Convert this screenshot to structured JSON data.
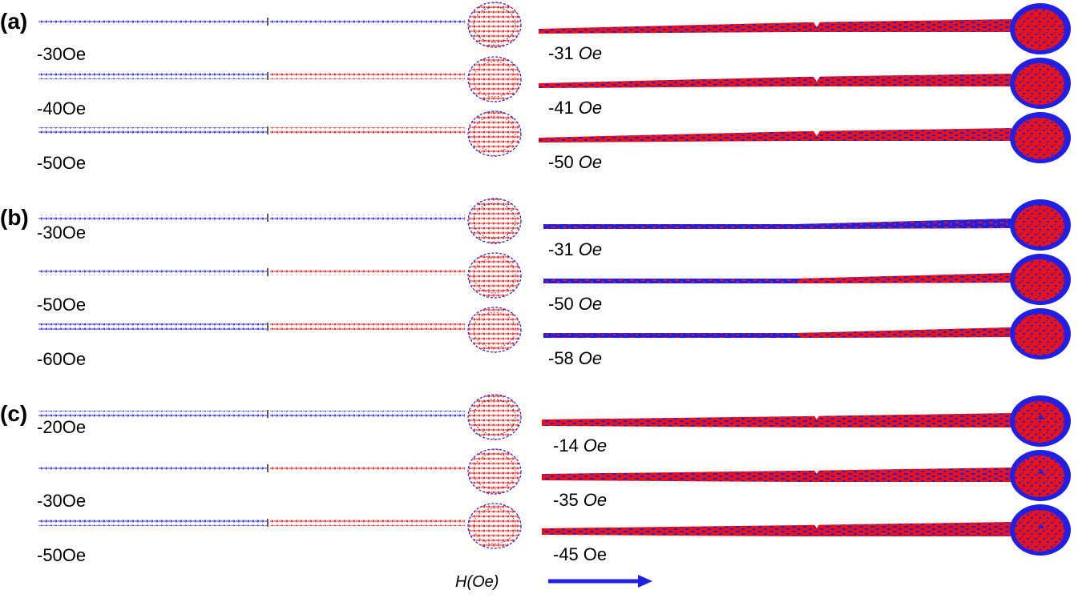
{
  "colors": {
    "blue": "#1f1fe6",
    "red": "#ee1111",
    "dark": "#222222"
  },
  "axis": {
    "label": "H(Oe)"
  },
  "panels": [
    {
      "label": "(a)",
      "left_fields": [
        "-30Oe",
        "-40Oe",
        "-50Oe"
      ],
      "right_fields": [
        {
          "value": "-31",
          "unit": "Oe",
          "unit_italic": true
        },
        {
          "value": "-41",
          "unit": "Oe",
          "unit_italic": true
        },
        {
          "value": "-50",
          "unit": "Oe",
          "unit_italic": true
        }
      ]
    },
    {
      "label": "(b)",
      "left_fields": [
        "-30Oe",
        "-50Oe",
        "-60Oe"
      ],
      "right_fields": [
        {
          "value": "-31",
          "unit": "Oe",
          "unit_italic": true
        },
        {
          "value": "-50",
          "unit": "Oe",
          "unit_italic": true
        },
        {
          "value": "-58",
          "unit": "Oe",
          "unit_italic": true
        }
      ]
    },
    {
      "label": "(c)",
      "left_fields": [
        "-20Oe",
        "-30Oe",
        "-50Oe"
      ],
      "right_fields": [
        {
          "value": "-14",
          "unit": "Oe",
          "unit_italic": true
        },
        {
          "value": "-35",
          "unit": "Oe",
          "unit_italic": true
        },
        {
          "value": "-45",
          "unit": "Oe",
          "unit_italic": false
        }
      ]
    }
  ]
}
